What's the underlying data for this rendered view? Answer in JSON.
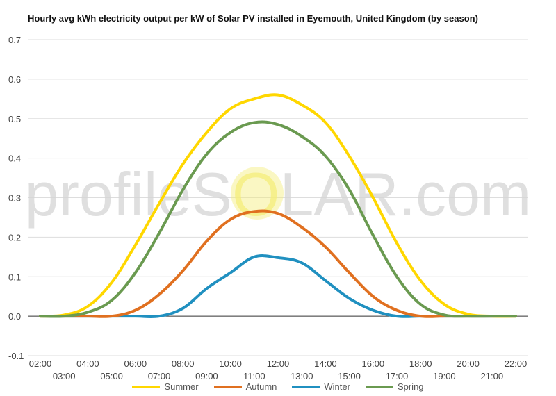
{
  "title": "Hourly avg kWh electricity output per kW of Solar PV installed in Eyemouth, United Kingdom (by season)",
  "watermark": {
    "left": "profileS",
    "sun": "O",
    "right": "LAR.com"
  },
  "chart_data": {
    "type": "line",
    "title": "Hourly avg kWh electricity output per kW of Solar PV installed in Eyemouth, United Kingdom (by season)",
    "xlabel": "",
    "ylabel": "",
    "ylim": [
      -0.1,
      0.7
    ],
    "yticks": [
      "-0.1",
      "0.0",
      "0.1",
      "0.2",
      "0.3",
      "0.4",
      "0.5",
      "0.6",
      "0.7"
    ],
    "categories": [
      "02:00",
      "03:00",
      "04:00",
      "05:00",
      "06:00",
      "07:00",
      "08:00",
      "09:00",
      "10:00",
      "11:00",
      "12:00",
      "13:00",
      "14:00",
      "15:00",
      "16:00",
      "17:00",
      "18:00",
      "19:00",
      "20:00",
      "21:00",
      "22:00"
    ],
    "grid": true,
    "legend_position": "bottom",
    "series": [
      {
        "name": "Summer",
        "color": "#FFD700",
        "values": [
          0,
          0.003,
          0.025,
          0.085,
          0.18,
          0.285,
          0.385,
          0.465,
          0.525,
          0.55,
          0.56,
          0.535,
          0.49,
          0.405,
          0.3,
          0.185,
          0.09,
          0.03,
          0.005,
          0,
          0
        ]
      },
      {
        "name": "Autumn",
        "color": "#E07020",
        "values": [
          0,
          0,
          0,
          0,
          0.015,
          0.055,
          0.115,
          0.19,
          0.245,
          0.265,
          0.26,
          0.225,
          0.175,
          0.11,
          0.05,
          0.015,
          0,
          0,
          0,
          0,
          0
        ]
      },
      {
        "name": "Winter",
        "color": "#2090C0",
        "values": [
          0,
          0,
          0,
          0,
          0,
          0,
          0.02,
          0.07,
          0.11,
          0.15,
          0.148,
          0.135,
          0.09,
          0.045,
          0.015,
          0,
          0,
          0,
          0,
          0,
          0
        ]
      },
      {
        "name": "Spring",
        "color": "#6A9A50",
        "values": [
          0,
          0,
          0.01,
          0.04,
          0.11,
          0.21,
          0.32,
          0.41,
          0.465,
          0.49,
          0.485,
          0.455,
          0.405,
          0.32,
          0.205,
          0.1,
          0.03,
          0.003,
          0,
          0,
          0
        ]
      }
    ]
  }
}
